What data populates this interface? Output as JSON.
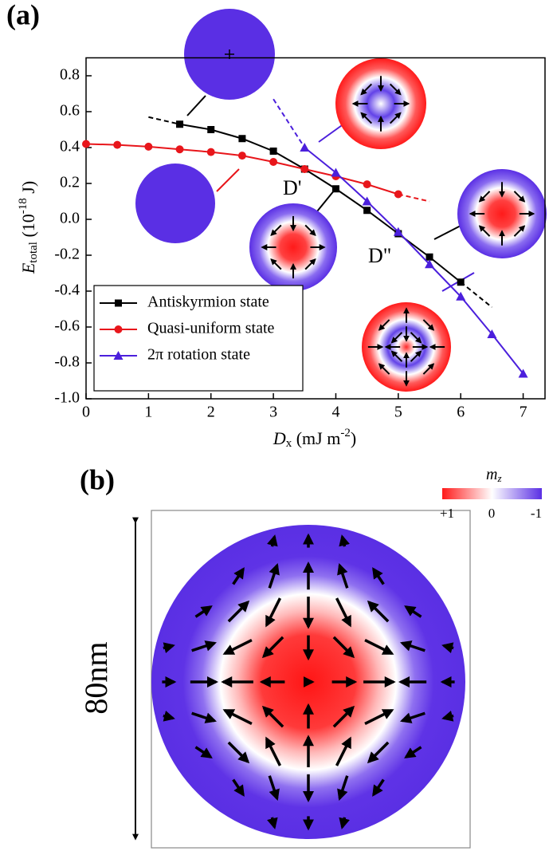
{
  "chart_data": {
    "type": "line",
    "panel_labels": [
      "(a)",
      "(b)"
    ],
    "xlabel": {
      "main": "D",
      "sub": "x",
      "rest": " (mJ m",
      "sup": "-2",
      "end": ")"
    },
    "ylabel": {
      "main": "E",
      "sub": "total",
      "rest": " (10",
      "sup": "-18",
      "end": " J)"
    },
    "xlim": [
      0,
      7.35
    ],
    "ylim": [
      -1.0,
      0.9
    ],
    "xticks": [
      0,
      1,
      2,
      3,
      4,
      5,
      6,
      7
    ],
    "yticks": [
      {
        "value": -1.0,
        "label": "-1.0"
      },
      -0.8,
      -0.6,
      -0.4,
      -0.2,
      {
        "value": 0,
        "label": "0.0"
      },
      0.2,
      0.4,
      0.6,
      0.8
    ],
    "legend": "lower left",
    "series": [
      {
        "name": "Antiskyrmion state",
        "color": "#000000",
        "marker": "square",
        "x": [
          1.5,
          2,
          2.5,
          3,
          3.5,
          4,
          4.5,
          5,
          5.5,
          6
        ],
        "values": [
          0.53,
          0.5,
          0.45,
          0.38,
          0.28,
          0.17,
          0.05,
          -0.08,
          -0.21,
          -0.35
        ],
        "dashed_x": [
          [
            1.0,
            1.5
          ],
          [
            6,
            6.5
          ]
        ],
        "dashed_values": [
          [
            0.57,
            0.53
          ],
          [
            -0.35,
            -0.49
          ]
        ]
      },
      {
        "name": "Quasi-uniform state",
        "color": "#e8161b",
        "marker": "circle",
        "x": [
          0,
          0.5,
          1,
          1.5,
          2,
          2.5,
          3,
          3.5,
          4,
          4.5,
          5
        ],
        "values": [
          0.42,
          0.415,
          0.405,
          0.39,
          0.375,
          0.355,
          0.32,
          0.28,
          0.24,
          0.195,
          0.14
        ],
        "dashed_x": [
          [
            5,
            5.5
          ]
        ],
        "dashed_values": [
          [
            0.14,
            0.1
          ]
        ]
      },
      {
        "name": "2π rotation state",
        "color": "#4b1fdc",
        "marker": "triangle",
        "x": [
          3.5,
          4,
          4.5,
          5,
          5.5,
          6,
          6.5,
          7
        ],
        "values": [
          0.4,
          0.26,
          0.1,
          -0.07,
          -0.25,
          -0.43,
          -0.64,
          -0.86
        ],
        "dashed_x": [
          [
            3.0,
            3.5
          ]
        ],
        "dashed_values": [
          [
            0.67,
            0.4
          ]
        ]
      }
    ],
    "annotations": [
      "D'",
      "D\""
    ],
    "colorbar": {
      "label": "m",
      "sub": "z",
      "ticks": [
        "+1",
        "0",
        "-1"
      ]
    },
    "scale_label": "80nm"
  }
}
